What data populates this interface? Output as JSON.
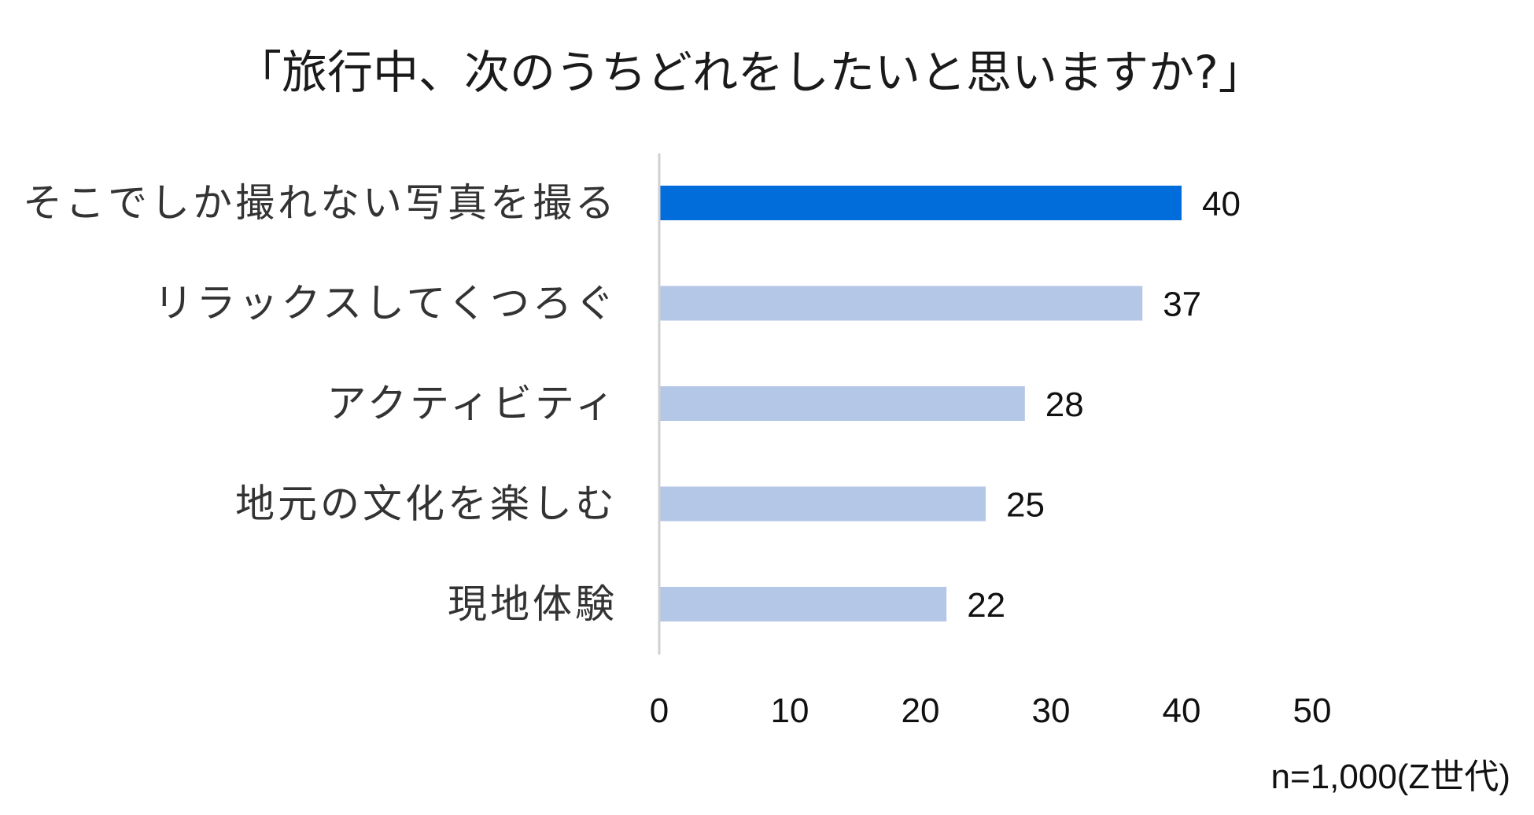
{
  "chart_data": {
    "type": "bar",
    "orientation": "horizontal",
    "title": "「旅行中、次のうちどれをしたいと思いますか?」",
    "categories": [
      "そこでしか撮れない写真を撮る",
      "リラックスしてくつろぐ",
      "アクティビティ",
      "地元の文化を楽しむ",
      "現地体験"
    ],
    "values": [
      40,
      37,
      28,
      25,
      22
    ],
    "xlim": [
      0,
      50
    ],
    "xticks": [
      0,
      10,
      20,
      30,
      40,
      50
    ],
    "grid": false,
    "highlight_index": 0,
    "colors": {
      "highlight": "#006DDB",
      "default": "#B4C7E7",
      "axis": "#D0D0D0"
    },
    "note": "n=1,000(Z世代)"
  }
}
